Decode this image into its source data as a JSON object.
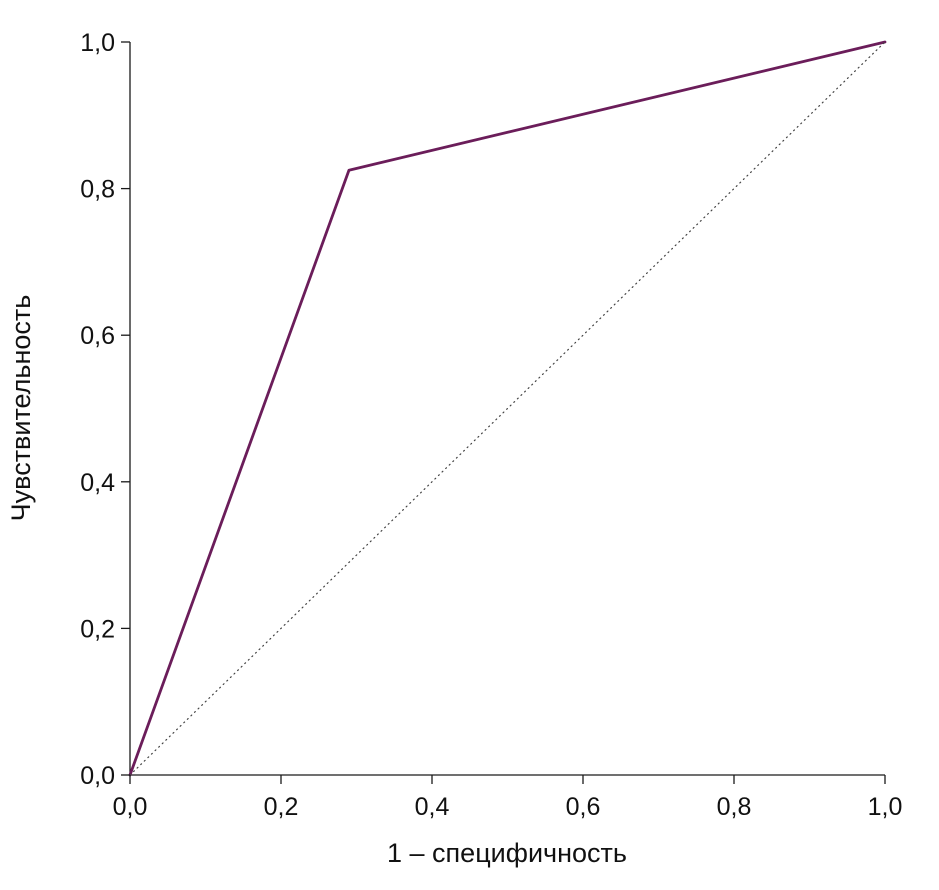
{
  "chart_data": {
    "type": "line",
    "title": "",
    "xlabel": "1 – специфичность",
    "ylabel": "Чувствительность",
    "xlim": [
      0,
      1
    ],
    "ylim": [
      0,
      1
    ],
    "grid": false,
    "legend": "none",
    "x_ticks": [
      0,
      0.2,
      0.4,
      0.6,
      0.8,
      1.0
    ],
    "y_ticks": [
      0,
      0.2,
      0.4,
      0.6,
      0.8,
      1.0
    ],
    "x_tick_labels": [
      "0,0",
      "0,2",
      "0,4",
      "0,6",
      "0,8",
      "1,0"
    ],
    "y_tick_labels": [
      "0,0",
      "0,2",
      "0,4",
      "0,6",
      "0,8",
      "1,0"
    ],
    "series": [
      {
        "name": "roc-curve",
        "style": "solid",
        "color": "#6b1d5a",
        "width": 2.8,
        "x": [
          0,
          0.29,
          1.0
        ],
        "y": [
          0,
          0.825,
          1.0
        ]
      },
      {
        "name": "reference-diagonal",
        "style": "dotted",
        "color": "#444444",
        "width": 1.2,
        "x": [
          0,
          1.0
        ],
        "y": [
          0,
          1.0
        ]
      }
    ]
  },
  "colors": {
    "axis": "#1a1a1a",
    "background": "#ffffff",
    "text": "#111111"
  }
}
